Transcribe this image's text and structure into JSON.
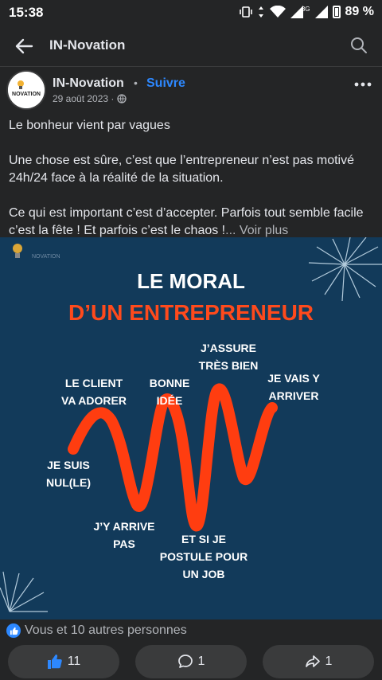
{
  "status_bar": {
    "time": "15:38",
    "battery": "89 %",
    "signal_label": "3G"
  },
  "app_bar": {
    "title": "IN-Novation"
  },
  "post": {
    "author": "IN-Novation",
    "separator": "•",
    "follow_label": "Suivre",
    "date": "29 août 2023 ·",
    "avatar_text": "IN NOVATION",
    "paragraphs": [
      "Le bonheur vient par vagues",
      "Une chose est sûre, c’est que l’entrepreneur n’est pas motivé 24h/24 face à la réalité de la situation.",
      "Ce qui est important c’est d’accepter. Parfois tout semble facile c’est la fête !  Et parfois c’est le chaos !"
    ],
    "see_more": "... Voir plus"
  },
  "image": {
    "title_line1": "LE MORAL",
    "title_line2": "D’UN ENTREPRENEUR",
    "labels": {
      "je_suis_nul": "JE SUIS\nNUL(LE)",
      "le_client": "LE CLIENT\nVA ADORER",
      "jy_arrive_pas": "J’Y ARRIVE\nPAS",
      "bonne_idee": "BONNE\nIDÉE",
      "et_si_je": "ET SI JE\nPOSTULE POUR\nUN JOB",
      "jassure": "J’ASSURE\nTRÈS BIEN",
      "je_vais": "JE VAIS Y\nARRIVER"
    },
    "colors": {
      "background": "#123a5a",
      "wave": "#ff3d10",
      "accent_title": "#ff4a1c"
    }
  },
  "reactions": {
    "summary": "Vous et 10 autres personnes"
  },
  "actions": {
    "like_count": "11",
    "comment_count": "1",
    "share_count": "1"
  }
}
